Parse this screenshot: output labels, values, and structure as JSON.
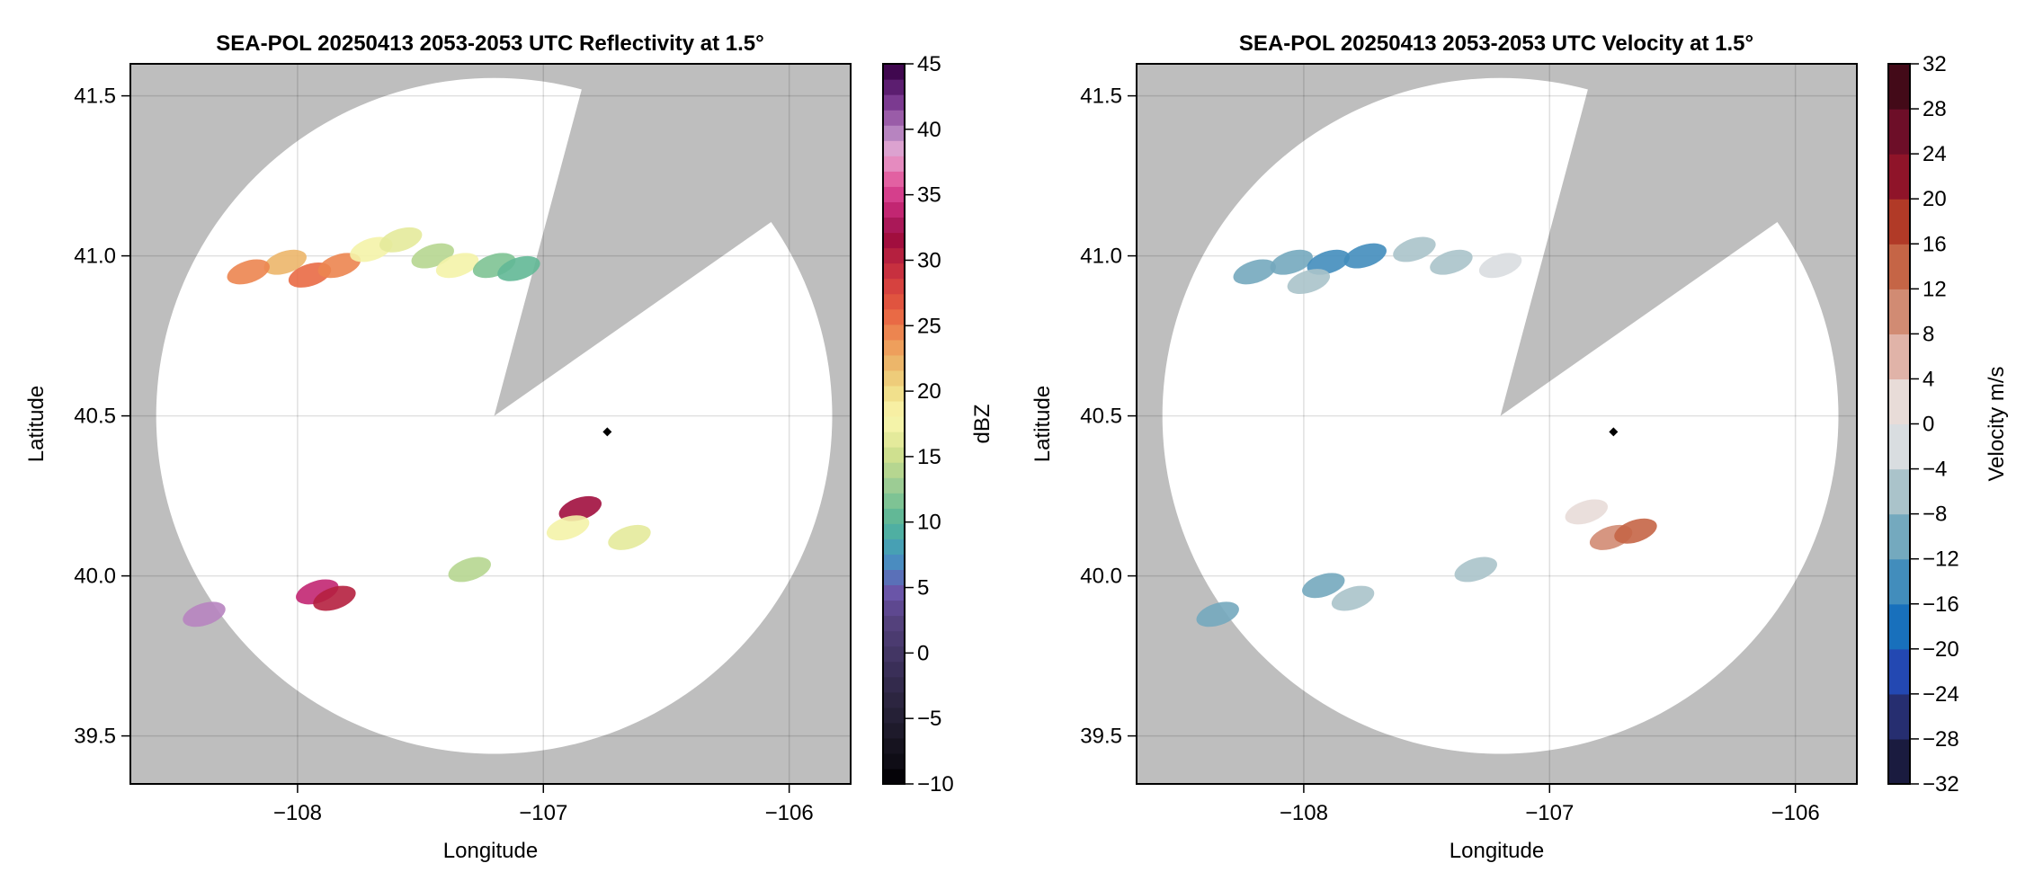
{
  "chart_data": [
    {
      "type": "heatmap",
      "title": "SEA-POL 20250413 2053-2053 UTC Reflectivity at 1.5°",
      "xlabel": "Longitude",
      "ylabel": "Latitude",
      "xlim": [
        -108.68,
        -105.75
      ],
      "ylim": [
        39.35,
        41.6
      ],
      "xticks": [
        -108,
        -107,
        -106
      ],
      "xtick_labels": [
        "−108",
        "−107",
        "−106"
      ],
      "yticks": [
        39.5,
        40.0,
        40.5,
        41.0,
        41.5
      ],
      "ytick_labels": [
        "39.5",
        "40.0",
        "40.5",
        "41.0",
        "41.5"
      ],
      "grid": true,
      "radar_center": [
        -107.2,
        40.5
      ],
      "radar_range_deg_lon": 1.375,
      "blocked_sector_deg": [
        15,
        55
      ],
      "marker": {
        "lon": -106.74,
        "lat": 40.45,
        "shape": "diamond"
      },
      "colorbar": {
        "label": "dBZ",
        "range": [
          -10,
          45
        ],
        "ticks": [
          -10,
          -5,
          0,
          5,
          10,
          15,
          20,
          25,
          30,
          35,
          40,
          45
        ],
        "tick_labels": [
          "−10",
          "−5",
          "0",
          "5",
          "10",
          "15",
          "20",
          "25",
          "30",
          "35",
          "40",
          "45"
        ],
        "colors": [
          "#050308",
          "#0f0d16",
          "#16131f",
          "#1e1a2b",
          "#252036",
          "#2c2540",
          "#332a4c",
          "#3a2f58",
          "#433664",
          "#4b3b70",
          "#54417c",
          "#5e4890",
          "#6a55a8",
          "#5a70b8",
          "#4a8cc0",
          "#47a0b4",
          "#4fafa2",
          "#62b896",
          "#7ec394",
          "#9ccc94",
          "#b6d690",
          "#cfe08f",
          "#e4ea9b",
          "#f4f3a9",
          "#f7efa3",
          "#f1e08c",
          "#eecc7a",
          "#ecb66a",
          "#ee9f5c",
          "#ec8550",
          "#e96a45",
          "#e0543f",
          "#d6423f",
          "#c7303f",
          "#b5203f",
          "#a10e3e",
          "#aa1858",
          "#c22672",
          "#d53f8c",
          "#e261a2",
          "#e58bbf",
          "#dca2d0",
          "#b784c0",
          "#9a5ca8",
          "#7b3a90",
          "#5c1e70",
          "#40084f"
        ],
        "colors_note": "sequential palette from bottom (-10) to top (45)"
      },
      "cells": [
        {
          "lon": -108.05,
          "lat": 40.98,
          "v": 22
        },
        {
          "lon": -107.95,
          "lat": 40.94,
          "v": 26
        },
        {
          "lon": -107.83,
          "lat": 40.97,
          "v": 24
        },
        {
          "lon": -107.7,
          "lat": 41.02,
          "v": 18
        },
        {
          "lon": -107.58,
          "lat": 41.05,
          "v": 16
        },
        {
          "lon": -107.45,
          "lat": 41.0,
          "v": 14
        },
        {
          "lon": -107.35,
          "lat": 40.97,
          "v": 18
        },
        {
          "lon": -107.2,
          "lat": 40.97,
          "v": 12
        },
        {
          "lon": -107.1,
          "lat": 40.96,
          "v": 10
        },
        {
          "lon": -108.2,
          "lat": 40.95,
          "v": 24
        },
        {
          "lon": -107.92,
          "lat": 39.95,
          "v": 34
        },
        {
          "lon": -107.85,
          "lat": 39.93,
          "v": 30
        },
        {
          "lon": -108.38,
          "lat": 39.88,
          "v": 40
        },
        {
          "lon": -106.85,
          "lat": 40.21,
          "v": 32
        },
        {
          "lon": -106.9,
          "lat": 40.15,
          "v": 18
        },
        {
          "lon": -106.65,
          "lat": 40.12,
          "v": 16
        },
        {
          "lon": -107.3,
          "lat": 40.02,
          "v": 14
        }
      ]
    },
    {
      "type": "heatmap",
      "title": "SEA-POL 20250413 2053-2053 UTC Velocity at 1.5°",
      "xlabel": "Longitude",
      "ylabel": "Latitude",
      "xlim": [
        -108.68,
        -105.75
      ],
      "ylim": [
        39.35,
        41.6
      ],
      "xticks": [
        -108,
        -107,
        -106
      ],
      "xtick_labels": [
        "−108",
        "−107",
        "−106"
      ],
      "yticks": [
        39.5,
        40.0,
        40.5,
        41.0,
        41.5
      ],
      "ytick_labels": [
        "39.5",
        "40.0",
        "40.5",
        "41.0",
        "41.5"
      ],
      "grid": true,
      "radar_center": [
        -107.2,
        40.5
      ],
      "radar_range_deg_lon": 1.375,
      "blocked_sector_deg": [
        15,
        55
      ],
      "marker": {
        "lon": -106.74,
        "lat": 40.45,
        "shape": "diamond"
      },
      "colorbar": {
        "label": "Velocity m/s",
        "range": [
          -32,
          32
        ],
        "ticks": [
          -32,
          -28,
          -24,
          -20,
          -16,
          -12,
          -8,
          -4,
          0,
          4,
          8,
          12,
          16,
          20,
          24,
          28,
          32
        ],
        "tick_labels": [
          "−32",
          "−28",
          "−24",
          "−20",
          "−16",
          "−12",
          "−8",
          "−4",
          "0",
          "4",
          "8",
          "12",
          "16",
          "20",
          "24",
          "28",
          "32"
        ],
        "colors": [
          "#1a1b3f",
          "#262e70",
          "#2348b2",
          "#1870bc",
          "#428dbc",
          "#74a9be",
          "#aac3ca",
          "#d9dde0",
          "#e8dcd8",
          "#e0b3a8",
          "#d18b73",
          "#c56546",
          "#b13a27",
          "#8f1429",
          "#6d0e28",
          "#430a18"
        ],
        "colors_note": "diverging palette from bottom (-32) to top (32)"
      },
      "cells": [
        {
          "lon": -108.05,
          "lat": 40.98,
          "v": -12
        },
        {
          "lon": -107.9,
          "lat": 40.98,
          "v": -14
        },
        {
          "lon": -107.75,
          "lat": 41.0,
          "v": -13
        },
        {
          "lon": -108.2,
          "lat": 40.95,
          "v": -10
        },
        {
          "lon": -107.98,
          "lat": 40.92,
          "v": -6
        },
        {
          "lon": -107.55,
          "lat": 41.02,
          "v": -6
        },
        {
          "lon": -107.4,
          "lat": 40.98,
          "v": -8
        },
        {
          "lon": -107.2,
          "lat": 40.97,
          "v": -3
        },
        {
          "lon": -107.92,
          "lat": 39.97,
          "v": -12
        },
        {
          "lon": -107.8,
          "lat": 39.93,
          "v": -6
        },
        {
          "lon": -108.35,
          "lat": 39.88,
          "v": -12
        },
        {
          "lon": -106.85,
          "lat": 40.2,
          "v": 3
        },
        {
          "lon": -106.75,
          "lat": 40.12,
          "v": 10
        },
        {
          "lon": -106.65,
          "lat": 40.14,
          "v": 14
        },
        {
          "lon": -107.3,
          "lat": 40.02,
          "v": -8
        }
      ]
    }
  ]
}
